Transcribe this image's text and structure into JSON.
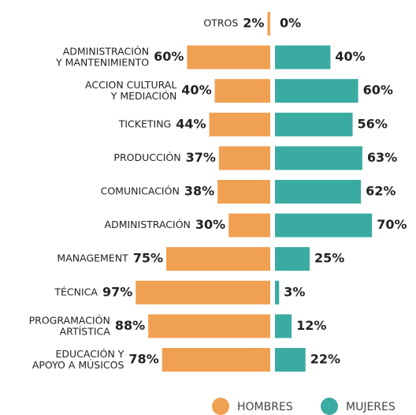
{
  "chart_data": {
    "type": "diverging_bar",
    "categories": [
      "OTROS",
      "ADMINISTRACIÓN\nY MANTENIMIENTO",
      "ACCION CULTURAL\nY MEDIACIÓN",
      "TICKETING",
      "PRODUCCIÓN",
      "COMUNICACIÓN",
      "ADMINISTRACIÓN",
      "MANAGEMENT",
      "TÉCNICA",
      "PROGRAMACIÓN\nARTÍSTICA",
      "EDUCACIÓN Y\nAPOYO A MÚSICOS"
    ],
    "series": [
      {
        "name": "HOMBRES",
        "color": "#f0a052",
        "values": [
          2,
          60,
          40,
          44,
          37,
          38,
          30,
          75,
          97,
          88,
          78
        ],
        "value_labels": [
          "2%",
          "60%",
          "40%",
          "44%",
          "37%",
          "38%",
          "30%",
          "75%",
          "97%",
          "88%",
          "78%"
        ]
      },
      {
        "name": "MUJERES",
        "color": "#3aaba1",
        "values": [
          0,
          40,
          60,
          56,
          63,
          62,
          70,
          25,
          3,
          12,
          22
        ],
        "value_labels": [
          "0%",
          "40%",
          "60%",
          "56%",
          "63%",
          "62%",
          "70%",
          "25%",
          "3%",
          "12%",
          "22%"
        ]
      }
    ]
  }
}
